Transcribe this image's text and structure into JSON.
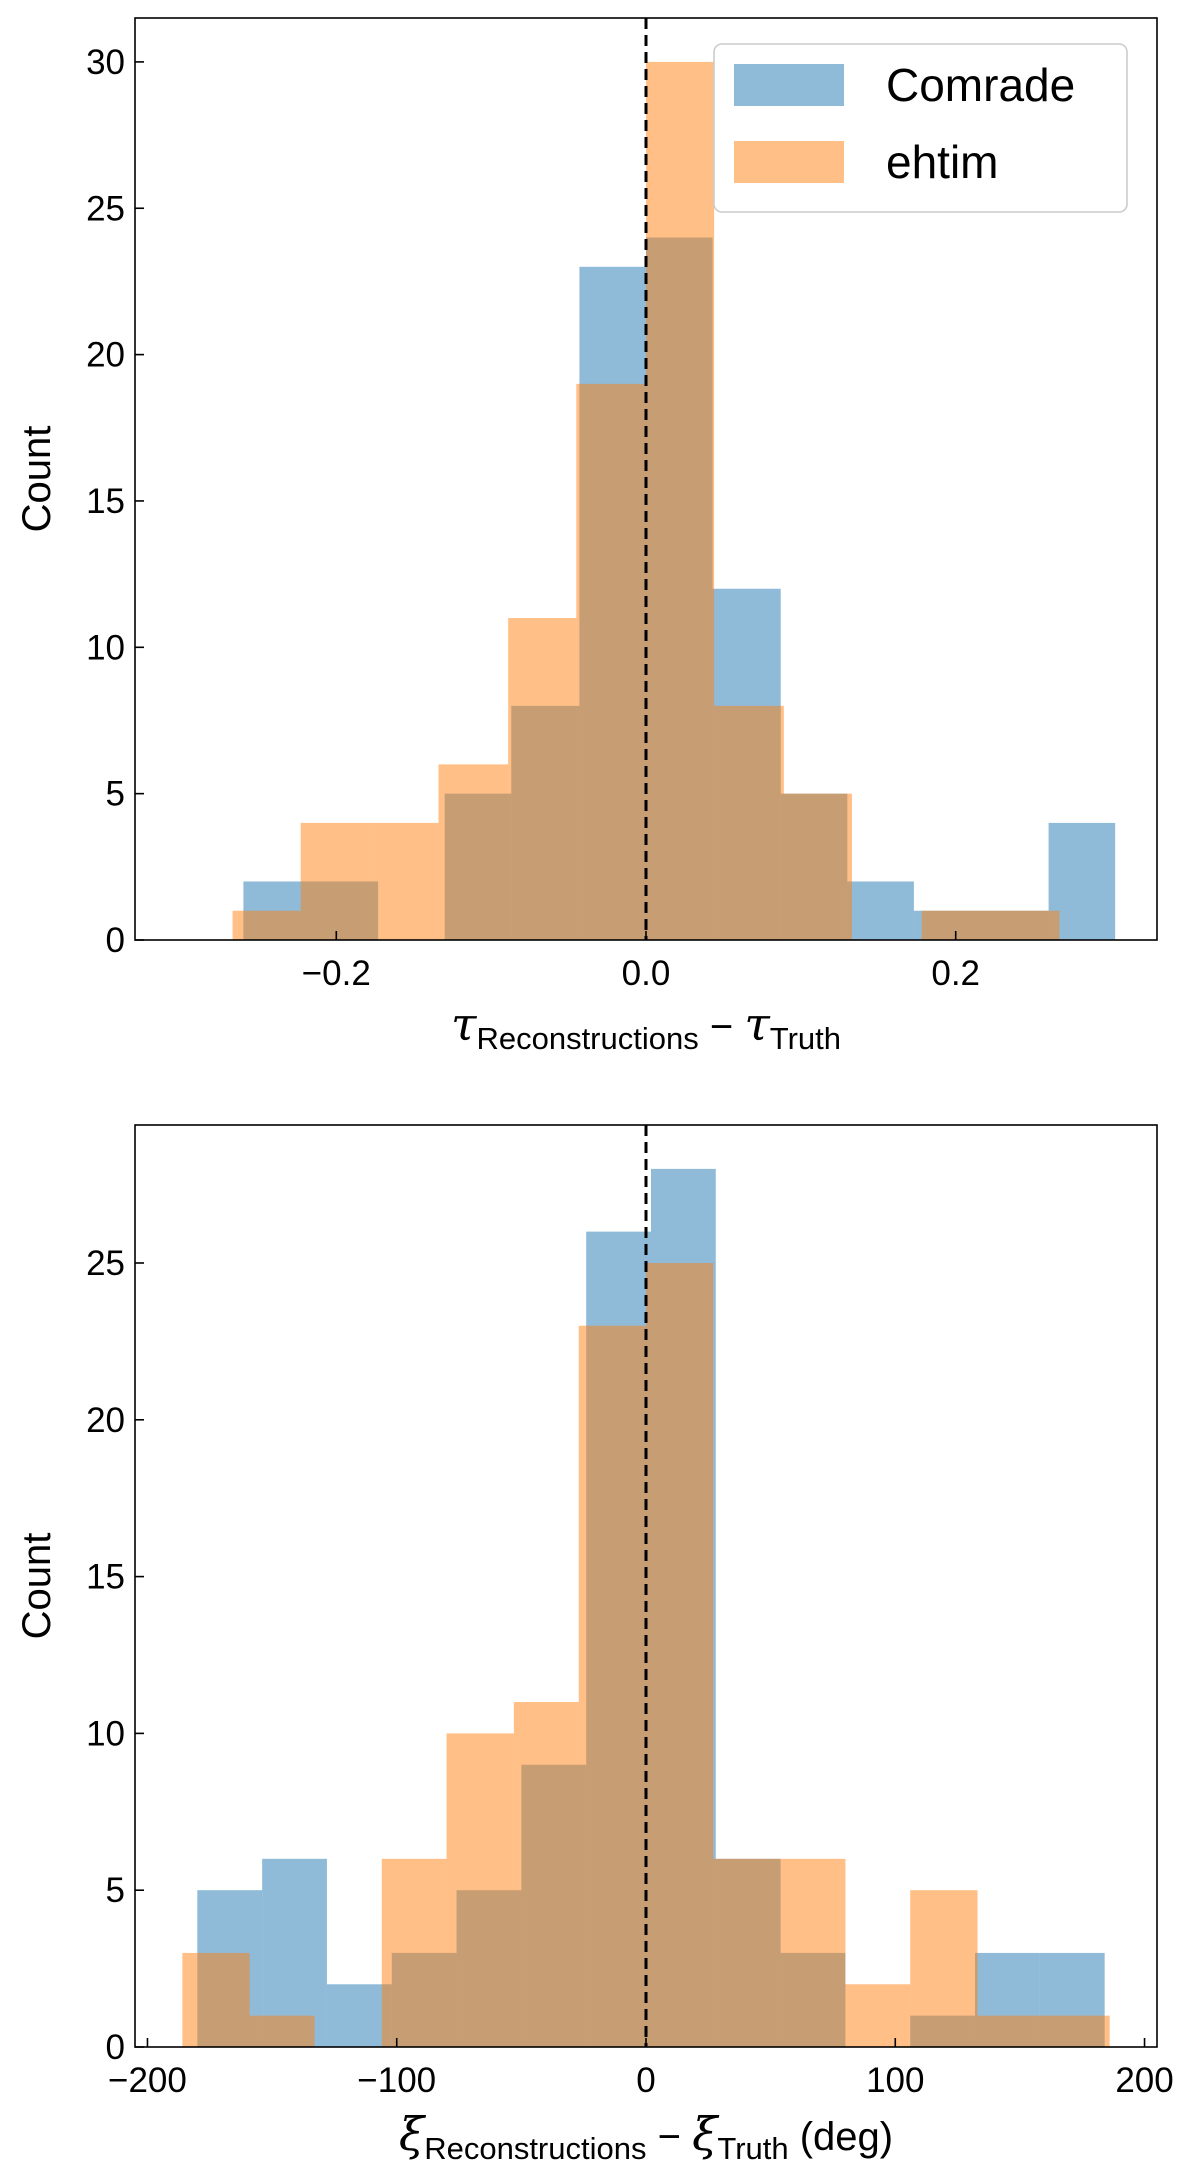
{
  "chart_data": [
    {
      "type": "histogram",
      "title": "",
      "xlabel": "τ_Reconstructions − τ_Truth",
      "xlabel_parts": {
        "sym1": "τ",
        "sub1": "Reconstructions",
        "minus": " − ",
        "sym2": "τ",
        "sub2": "Truth",
        "unit": ""
      },
      "ylabel": "Count",
      "xlim": [
        -0.33,
        0.33
      ],
      "ylim": [
        0,
        31.5
      ],
      "xticks": [
        -0.2,
        0.0,
        0.2
      ],
      "xtick_labels": [
        "−0.2",
        "0.0",
        "0.2"
      ],
      "yticks": [
        0,
        5,
        10,
        15,
        20,
        25,
        30
      ],
      "ytick_labels": [
        "0",
        "5",
        "10",
        "15",
        "20",
        "25",
        "30"
      ],
      "reference_line": {
        "x": 0.0,
        "style": "dashed",
        "color": "#000000"
      },
      "legend": {
        "position": "top-right",
        "entries": [
          "Comrade",
          "ehtim"
        ]
      },
      "series": [
        {
          "name": "Comrade",
          "color": "#1f77b4",
          "alpha": 0.5,
          "bin_edges": [
            -0.26,
            -0.217,
            -0.173,
            -0.13,
            -0.087,
            -0.043,
            0.0,
            0.043,
            0.087,
            0.13,
            0.173,
            0.217,
            0.26,
            0.303
          ],
          "counts": [
            2,
            2,
            0,
            5,
            8,
            23,
            24,
            12,
            5,
            2,
            1,
            1,
            4
          ]
        },
        {
          "name": "ehtim",
          "color": "#ff7f0e",
          "alpha": 0.5,
          "bin_edges": [
            -0.267,
            -0.223,
            -0.178,
            -0.134,
            -0.089,
            -0.045,
            0.0,
            0.044,
            0.089,
            0.133,
            0.178,
            0.222,
            0.267
          ],
          "counts": [
            1,
            4,
            4,
            6,
            11,
            19,
            30,
            8,
            5,
            0,
            1,
            1
          ]
        }
      ]
    },
    {
      "type": "histogram",
      "title": "",
      "xlabel": "ξ_Reconstructions − ξ_Truth (deg)",
      "xlabel_parts": {
        "sym1": "ξ",
        "sub1": "Reconstructions",
        "minus": " − ",
        "sym2": "ξ",
        "sub2": "Truth",
        "unit": " (deg)"
      },
      "ylabel": "Count",
      "xlim": [
        -205,
        205
      ],
      "ylim": [
        0,
        29.4
      ],
      "xticks": [
        -200,
        -100,
        0,
        100,
        200
      ],
      "xtick_labels": [
        "−200",
        "−100",
        "0",
        "100",
        "200"
      ],
      "yticks": [
        0,
        5,
        10,
        15,
        20,
        25
      ],
      "ytick_labels": [
        "0",
        "5",
        "10",
        "15",
        "20",
        "25"
      ],
      "reference_line": {
        "x": 0,
        "style": "dashed",
        "color": "#000000"
      },
      "legend": null,
      "series": [
        {
          "name": "Comrade",
          "color": "#1f77b4",
          "alpha": 0.5,
          "bin_edges": [
            -180,
            -154,
            -128,
            -102,
            -76,
            -50,
            -24,
            2,
            28,
            54,
            80,
            106,
            132,
            158,
            184
          ],
          "counts": [
            5,
            6,
            2,
            3,
            5,
            9,
            26,
            28,
            6,
            3,
            0,
            1,
            3,
            3
          ]
        },
        {
          "name": "ehtim",
          "color": "#ff7f0e",
          "alpha": 0.5,
          "bin_edges": [
            -186,
            -159,
            -133,
            -106,
            -80,
            -53,
            -27,
            0,
            27,
            53,
            80,
            106,
            133,
            159,
            186
          ],
          "counts": [
            3,
            1,
            0,
            6,
            10,
            11,
            23,
            25,
            6,
            6,
            2,
            5,
            1,
            1
          ]
        }
      ]
    }
  ]
}
